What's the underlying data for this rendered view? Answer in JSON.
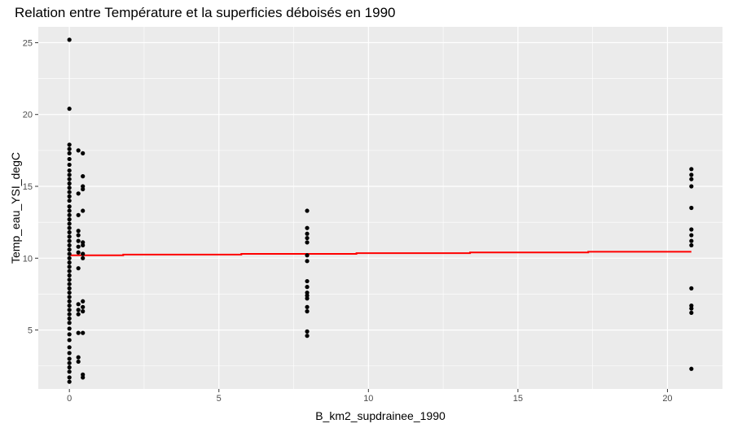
{
  "chart_data": {
    "type": "scatter",
    "title": "Relation entre Température et la superficies déboisés en 1990",
    "xlabel": "B_km2_supdrainee_1990",
    "ylabel": "Temp_eau_YSI_degC",
    "xlim": [
      -1.04,
      21.84
    ],
    "ylim": [
      0.9,
      26.1
    ],
    "x_ticks": [
      0,
      5,
      10,
      15,
      20
    ],
    "y_ticks": [
      5,
      10,
      15,
      20,
      25
    ],
    "grid": true,
    "background_color": "#ebebeb",
    "point_color": "#000000",
    "fit_color": "#ff0000",
    "series": [
      {
        "type": "scatter",
        "points": [
          [
            0,
            25.2
          ],
          [
            0,
            20.4
          ],
          [
            0,
            17.9
          ],
          [
            0,
            17.6
          ],
          [
            0,
            17.3
          ],
          [
            0,
            16.9
          ],
          [
            0,
            16.5
          ],
          [
            0,
            16.1
          ],
          [
            0,
            15.8
          ],
          [
            0,
            15.5
          ],
          [
            0,
            15.2
          ],
          [
            0,
            14.9
          ],
          [
            0,
            14.6
          ],
          [
            0,
            14.3
          ],
          [
            0,
            14.0
          ],
          [
            0,
            13.6
          ],
          [
            0,
            13.3
          ],
          [
            0,
            13.0
          ],
          [
            0,
            12.7
          ],
          [
            0,
            12.4
          ],
          [
            0,
            12.1
          ],
          [
            0,
            11.8
          ],
          [
            0,
            11.5
          ],
          [
            0,
            11.2
          ],
          [
            0,
            10.9
          ],
          [
            0,
            10.6
          ],
          [
            0,
            10.3
          ],
          [
            0,
            10.0
          ],
          [
            0,
            9.7
          ],
          [
            0,
            9.4
          ],
          [
            0,
            9.1
          ],
          [
            0,
            8.8
          ],
          [
            0,
            8.5
          ],
          [
            0,
            8.2
          ],
          [
            0,
            7.9
          ],
          [
            0,
            7.6
          ],
          [
            0,
            7.3
          ],
          [
            0,
            7.0
          ],
          [
            0,
            6.7
          ],
          [
            0,
            6.4
          ],
          [
            0,
            6.1
          ],
          [
            0,
            5.8
          ],
          [
            0,
            5.5
          ],
          [
            0,
            5.1
          ],
          [
            0,
            4.7
          ],
          [
            0,
            4.3
          ],
          [
            0,
            3.8
          ],
          [
            0,
            3.4
          ],
          [
            0,
            3.0
          ],
          [
            0,
            2.7
          ],
          [
            0,
            2.4
          ],
          [
            0,
            2.1
          ],
          [
            0,
            1.7
          ],
          [
            0,
            1.4
          ],
          [
            0.3,
            17.5
          ],
          [
            0.3,
            14.5
          ],
          [
            0.3,
            13.0
          ],
          [
            0.3,
            11.9
          ],
          [
            0.3,
            11.6
          ],
          [
            0.3,
            11.2
          ],
          [
            0.3,
            10.8
          ],
          [
            0.3,
            10.4
          ],
          [
            0.3,
            9.3
          ],
          [
            0.3,
            6.8
          ],
          [
            0.3,
            6.4
          ],
          [
            0.3,
            6.1
          ],
          [
            0.3,
            4.8
          ],
          [
            0.3,
            3.1
          ],
          [
            0.3,
            2.8
          ],
          [
            0.45,
            17.3
          ],
          [
            0.45,
            15.7
          ],
          [
            0.45,
            15.0
          ],
          [
            0.45,
            14.8
          ],
          [
            0.45,
            13.3
          ],
          [
            0.45,
            11.1
          ],
          [
            0.45,
            10.9
          ],
          [
            0.45,
            10.3
          ],
          [
            0.45,
            10.0
          ],
          [
            0.45,
            7.0
          ],
          [
            0.45,
            6.6
          ],
          [
            0.45,
            6.3
          ],
          [
            0.45,
            4.8
          ],
          [
            0.45,
            1.9
          ],
          [
            0.45,
            1.7
          ],
          [
            7.95,
            13.3
          ],
          [
            7.95,
            12.1
          ],
          [
            7.95,
            11.7
          ],
          [
            7.95,
            11.4
          ],
          [
            7.95,
            11.1
          ],
          [
            7.95,
            10.2
          ],
          [
            7.95,
            9.8
          ],
          [
            7.95,
            8.4
          ],
          [
            7.95,
            8.0
          ],
          [
            7.95,
            7.6
          ],
          [
            7.95,
            7.4
          ],
          [
            7.95,
            7.2
          ],
          [
            7.95,
            6.6
          ],
          [
            7.95,
            6.3
          ],
          [
            7.95,
            4.9
          ],
          [
            7.95,
            4.6
          ],
          [
            20.8,
            16.2
          ],
          [
            20.8,
            15.8
          ],
          [
            20.8,
            15.5
          ],
          [
            20.8,
            15.0
          ],
          [
            20.8,
            13.5
          ],
          [
            20.8,
            12.0
          ],
          [
            20.8,
            11.6
          ],
          [
            20.8,
            11.2
          ],
          [
            20.8,
            10.9
          ],
          [
            20.8,
            7.9
          ],
          [
            20.8,
            6.7
          ],
          [
            20.8,
            6.5
          ],
          [
            20.8,
            6.2
          ],
          [
            20.8,
            2.3
          ]
        ]
      },
      {
        "type": "step_line",
        "points": [
          [
            0,
            10.2
          ],
          [
            1.8,
            10.2
          ],
          [
            1.8,
            10.25
          ],
          [
            5.75,
            10.25
          ],
          [
            5.75,
            10.3
          ],
          [
            9.6,
            10.3
          ],
          [
            9.6,
            10.35
          ],
          [
            13.4,
            10.35
          ],
          [
            13.4,
            10.4
          ],
          [
            17.35,
            10.4
          ],
          [
            17.35,
            10.45
          ],
          [
            20.8,
            10.45
          ]
        ]
      }
    ]
  }
}
